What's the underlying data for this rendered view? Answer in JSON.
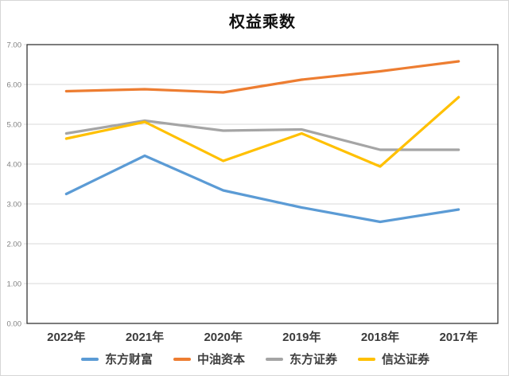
{
  "chart_data": {
    "type": "line",
    "title": "权益乘数",
    "categories": [
      "2022年",
      "2021年",
      "2020年",
      "2019年",
      "2018年",
      "2017年"
    ],
    "series": [
      {
        "name": "东方财富",
        "color": "#5B9BD5",
        "values": [
          3.25,
          4.21,
          3.34,
          2.91,
          2.55,
          2.86
        ]
      },
      {
        "name": "中油资本",
        "color": "#ED7D31",
        "values": [
          5.83,
          5.88,
          5.8,
          6.12,
          6.33,
          6.58
        ]
      },
      {
        "name": "东方证券",
        "color": "#A5A5A5",
        "values": [
          4.77,
          5.09,
          4.84,
          4.87,
          4.36,
          4.36
        ]
      },
      {
        "name": "信达证券",
        "color": "#FFC000",
        "values": [
          4.64,
          5.06,
          4.08,
          4.77,
          3.94,
          5.68
        ]
      }
    ],
    "y_axis": {
      "min": 0,
      "max": 7,
      "step": 1,
      "tick_labels": [
        "0.00",
        "1.00",
        "2.00",
        "3.00",
        "4.00",
        "5.00",
        "6.00",
        "7.00"
      ]
    },
    "grid": true,
    "legend_position": "bottom",
    "colors": {
      "grid": "#D9D9D9",
      "border": "#262626",
      "tick_text": "#7F7F7F",
      "category_text": "#3B3B3B",
      "background": "#FFFFFF"
    }
  }
}
